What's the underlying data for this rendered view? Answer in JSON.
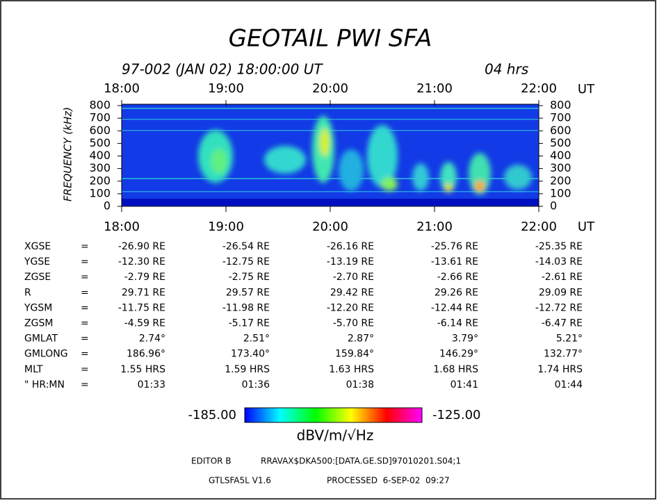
{
  "chart_data": {
    "type": "spectrogram",
    "title": "GEOTAIL PWI SFA",
    "subtitle": "97-002 (JAN 02) 18:00:00 UT",
    "duration": "04 hrs",
    "ylabel": "FREQUENCY (kHz)",
    "xunit": "UT",
    "xlim": [
      18,
      22
    ],
    "xticks": [
      {
        "value": 18,
        "label": "18:00"
      },
      {
        "value": 19,
        "label": "19:00"
      },
      {
        "value": 20,
        "label": "20:00"
      },
      {
        "value": 21,
        "label": "21:00"
      },
      {
        "value": 22,
        "label": "22:00"
      }
    ],
    "ylim": [
      0,
      800
    ],
    "yticks": [
      0,
      100,
      200,
      300,
      400,
      500,
      600,
      700,
      800
    ],
    "colorbar": {
      "min": {
        "value": -185,
        "label": "-185.00"
      },
      "max": {
        "value": -125,
        "label": "-125.00"
      },
      "label": "dBV/m/√Hz"
    }
  },
  "ephemeris": {
    "sep": "=",
    "rows": [
      {
        "label": "XGSE",
        "values": [
          "-26.90 RE",
          "-26.54 RE",
          "-26.16 RE",
          "-25.76 RE",
          "-25.35 RE"
        ]
      },
      {
        "label": "YGSE",
        "values": [
          "-12.30 RE",
          "-12.75 RE",
          "-13.19 RE",
          "-13.61 RE",
          "-14.03 RE"
        ]
      },
      {
        "label": "ZGSE",
        "values": [
          "-2.79 RE",
          "-2.75 RE",
          "-2.70 RE",
          "-2.66 RE",
          "-2.61 RE"
        ]
      },
      {
        "label": "R",
        "values": [
          "29.71 RE",
          "29.57 RE",
          "29.42 RE",
          "29.26 RE",
          "29.09 RE"
        ]
      },
      {
        "label": "YGSM",
        "values": [
          "-11.75 RE",
          "-11.98 RE",
          "-12.20 RE",
          "-12.44 RE",
          "-12.72 RE"
        ]
      },
      {
        "label": "ZGSM",
        "values": [
          "-4.59 RE",
          "-5.17 RE",
          "-5.70 RE",
          "-6.14 RE",
          "-6.47 RE"
        ]
      },
      {
        "label": "GMLAT",
        "values": [
          "2.74°",
          "2.51°",
          "2.87°",
          "3.79°",
          "5.21°"
        ]
      },
      {
        "label": "GMLONG",
        "values": [
          "186.96°",
          "173.40°",
          "159.84°",
          "146.29°",
          "132.77°"
        ]
      },
      {
        "label": "MLT",
        "values": [
          "1.55 HRS",
          "1.59 HRS",
          "1.63 HRS",
          "1.68 HRS",
          "1.74 HRS"
        ]
      },
      {
        "label": "\" HR:MN",
        "values": [
          "01:33",
          "01:36",
          "01:38",
          "01:41",
          "01:44"
        ]
      }
    ]
  },
  "footer": {
    "editor": "EDITOR B",
    "file": "RRAVAX$DKA500:[DATA.GE.SD]97010201.S04;1",
    "version": "GTLSFA5L V1.6",
    "processed": "PROCESSED  6-SEP-02  09:27"
  }
}
